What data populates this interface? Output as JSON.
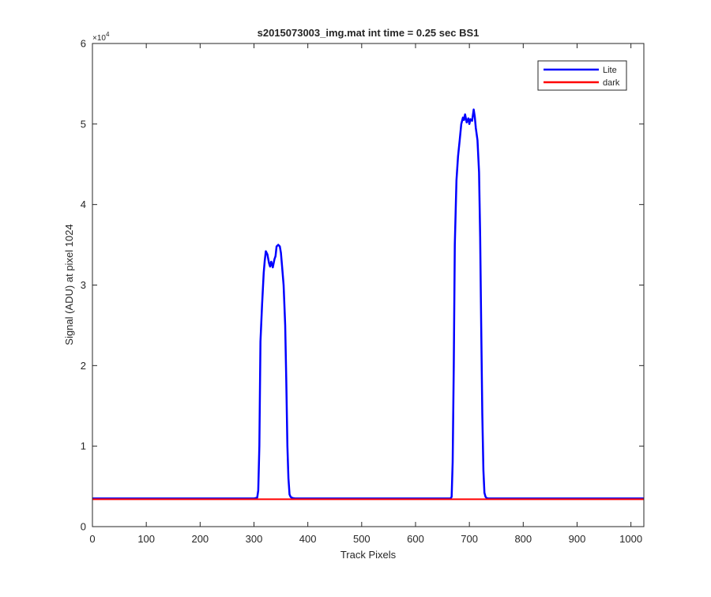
{
  "chart_data": {
    "type": "line",
    "title": "s2015073003_img.mat int time = 0.25 sec   BS1",
    "xlabel": "Track Pixels",
    "ylabel": "Signal (ADU) at pixel 1024",
    "y_exponent_label": "×10",
    "y_exponent_power": "4",
    "xlim": [
      0,
      1024
    ],
    "ylim": [
      0,
      60000
    ],
    "xticks": [
      0,
      100,
      200,
      300,
      400,
      500,
      600,
      700,
      800,
      900,
      1000
    ],
    "yticks": [
      0,
      10000,
      20000,
      30000,
      40000,
      50000,
      60000
    ],
    "ytick_labels": [
      "0",
      "1",
      "2",
      "3",
      "4",
      "5",
      "6"
    ],
    "grid": false,
    "legend_position": "top-right",
    "series": [
      {
        "name": "Lite",
        "color": "#0000ff",
        "x": [
          0,
          300,
          306,
          308,
          310,
          312,
          315,
          318,
          320,
          322,
          325,
          328,
          330,
          332,
          335,
          338,
          340,
          342,
          345,
          348,
          350,
          352,
          355,
          358,
          360,
          362,
          364,
          366,
          368,
          370,
          372,
          376,
          400,
          600,
          665,
          667,
          669,
          671,
          673,
          676,
          679,
          682,
          685,
          688,
          690,
          692,
          695,
          698,
          700,
          702,
          705,
          708,
          710,
          712,
          715,
          718,
          720,
          722,
          724,
          726,
          728,
          730,
          732,
          735,
          760,
          1024
        ],
        "values": [
          3500,
          3500,
          3600,
          4500,
          10000,
          23000,
          27500,
          31500,
          33000,
          34200,
          33800,
          32700,
          32300,
          32900,
          32200,
          33200,
          33600,
          34800,
          35000,
          34800,
          34000,
          32500,
          30000,
          25000,
          18000,
          10000,
          6000,
          4000,
          3700,
          3600,
          3550,
          3500,
          3500,
          3500,
          3500,
          3700,
          8000,
          20000,
          35000,
          43000,
          46000,
          48000,
          50000,
          50800,
          50500,
          51200,
          50200,
          50700,
          50000,
          50600,
          50400,
          51800,
          50900,
          49500,
          48000,
          44000,
          36000,
          25000,
          14000,
          7000,
          4200,
          3700,
          3550,
          3500,
          3500,
          3500
        ]
      },
      {
        "name": "dark",
        "color": "#ff0000",
        "x": [
          0,
          1024
        ],
        "values": [
          3400,
          3400
        ]
      }
    ]
  }
}
